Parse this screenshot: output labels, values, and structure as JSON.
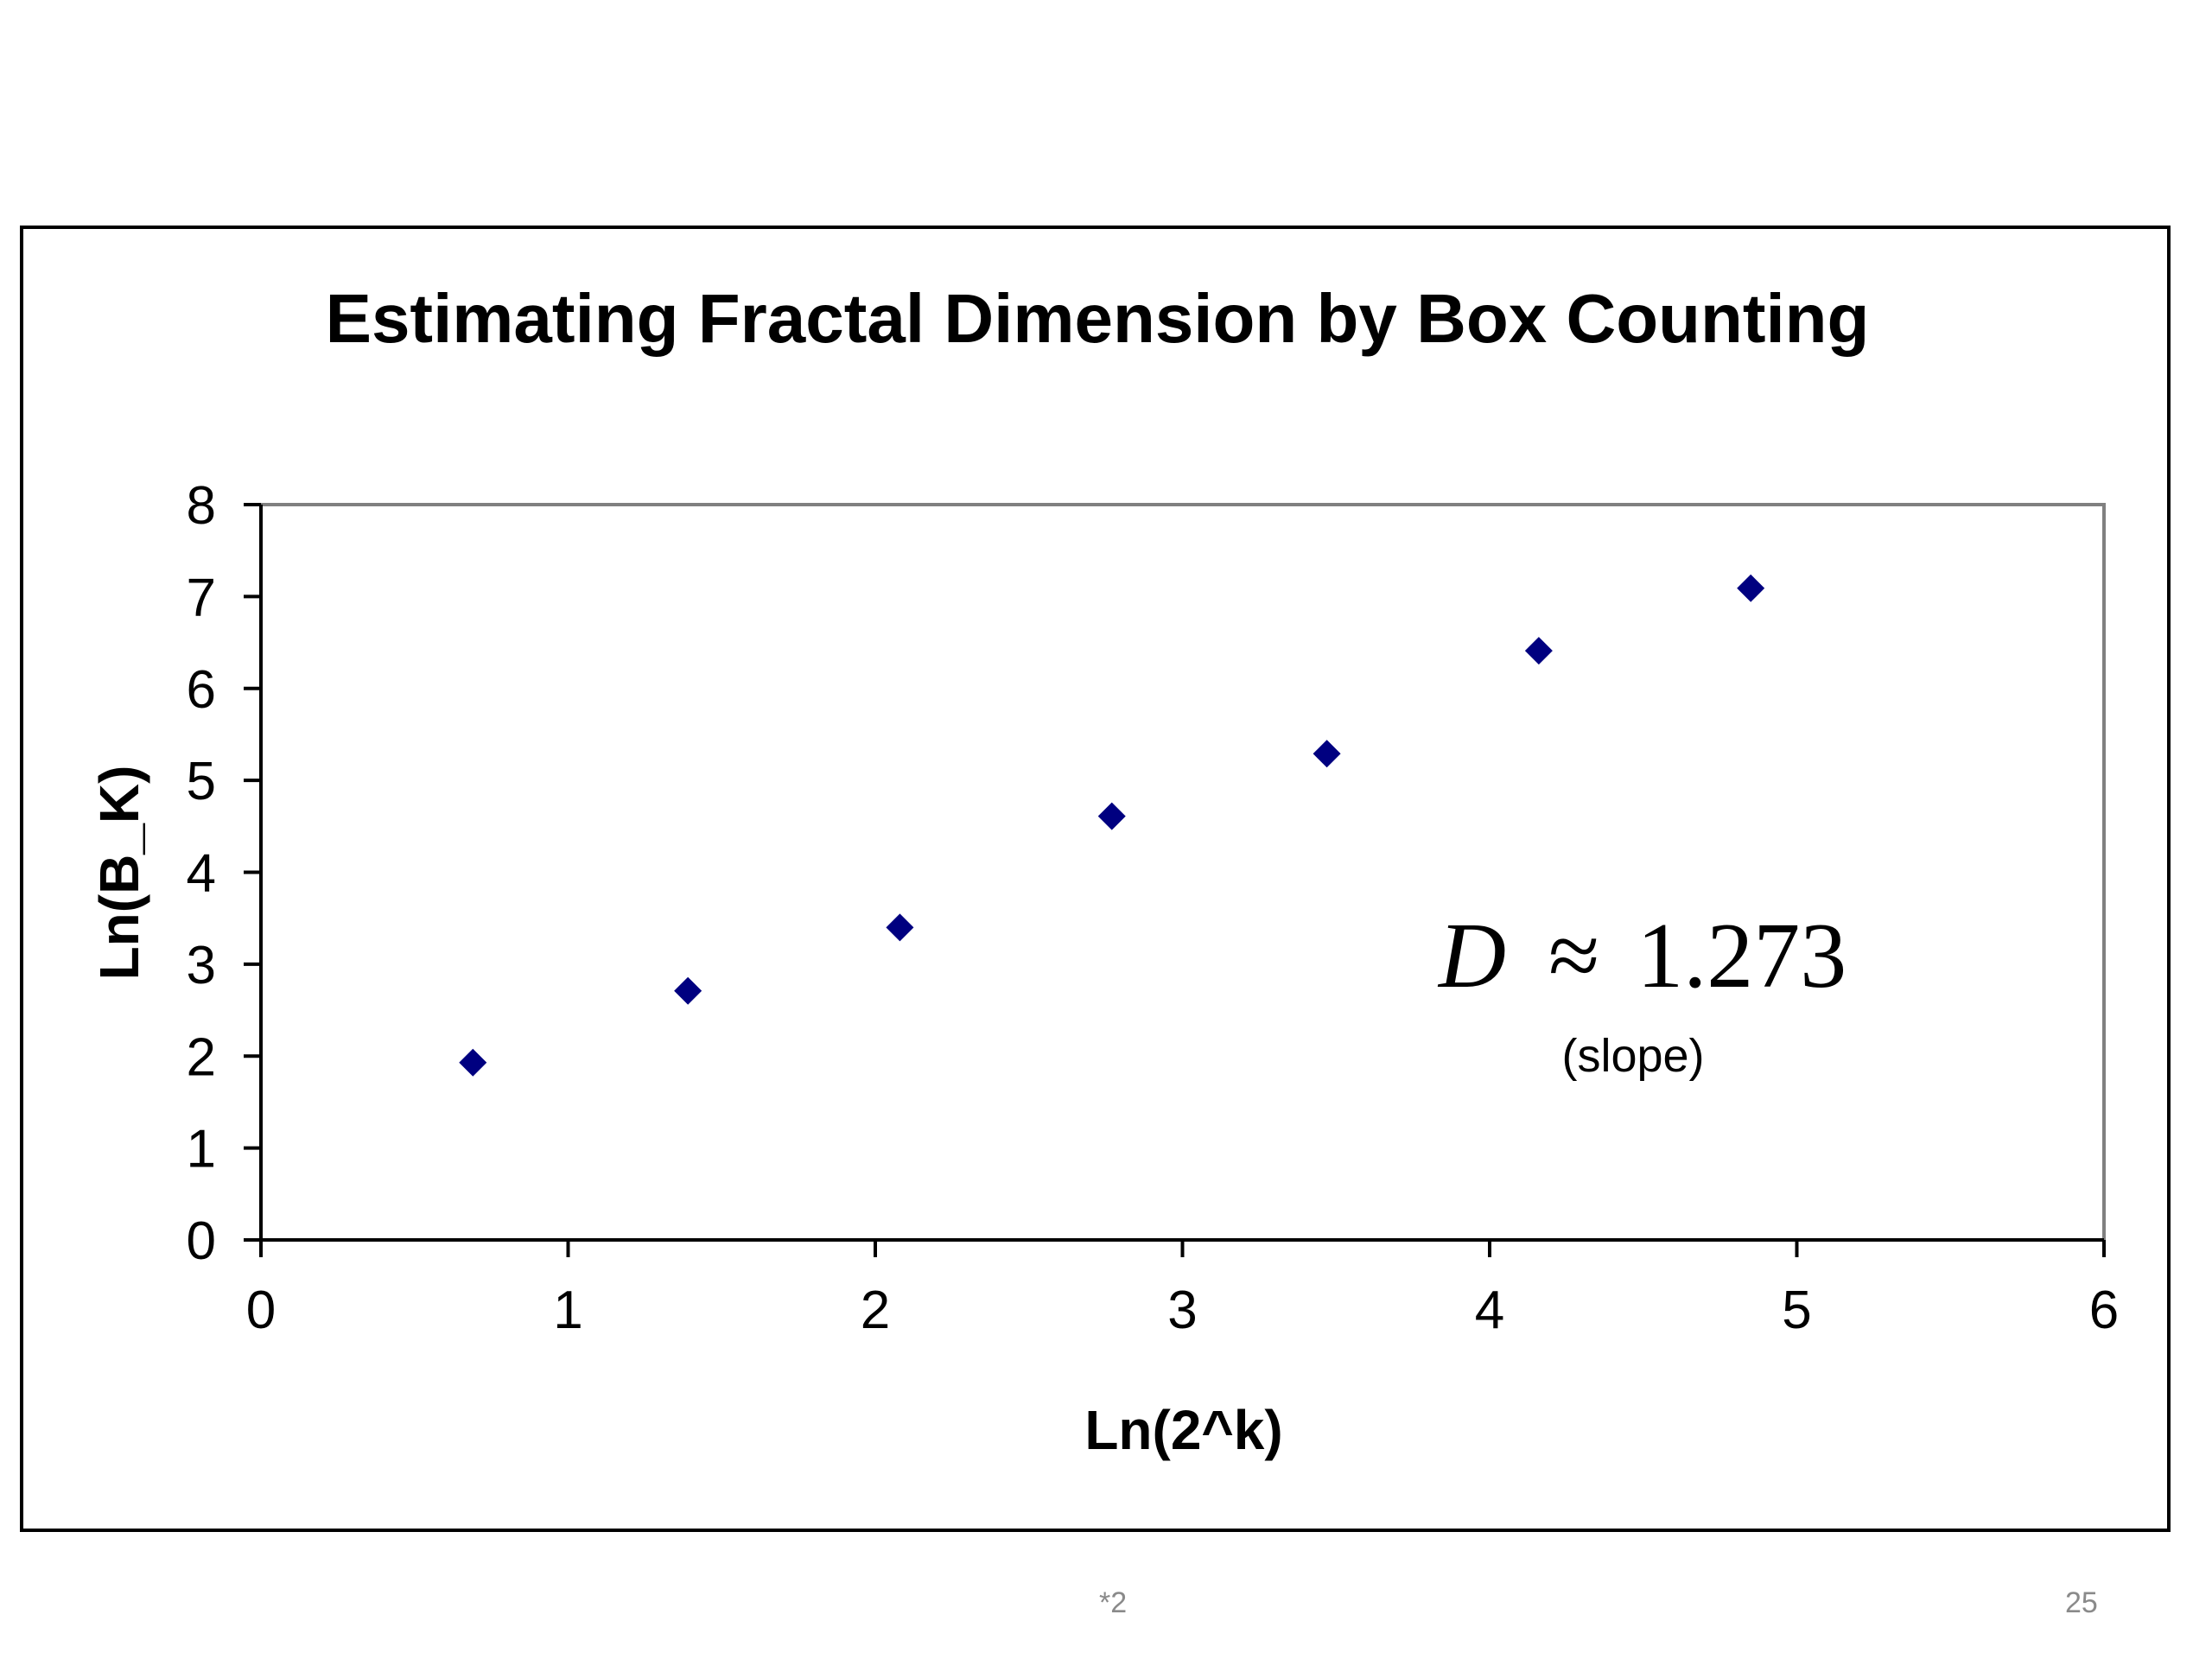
{
  "chart_data": {
    "type": "scatter",
    "title": "Estimating Fractal Dimension by Box Counting",
    "xlabel": "Ln(2^k)",
    "ylabel": "Ln(B_K)",
    "xlim": [
      0,
      6
    ],
    "ylim": [
      0,
      8
    ],
    "xticks": [
      0,
      1,
      2,
      3,
      4,
      5,
      6
    ],
    "yticks": [
      0,
      1,
      2,
      3,
      4,
      5,
      6,
      7,
      8
    ],
    "grid": false,
    "legend": "none",
    "marker": "diamond",
    "marker_color": "#000080",
    "series": [
      {
        "x": [
          0.69,
          1.39,
          2.08,
          2.77,
          3.47,
          4.16,
          4.85
        ],
        "y": [
          1.93,
          2.71,
          3.4,
          4.61,
          5.29,
          6.41,
          7.09
        ]
      }
    ],
    "annotation": {
      "formula_symbol": "D",
      "formula_op": "≈",
      "formula_value": "1.273",
      "note": "(slope)"
    }
  },
  "footer": {
    "note": "*2",
    "page_number": "25"
  }
}
